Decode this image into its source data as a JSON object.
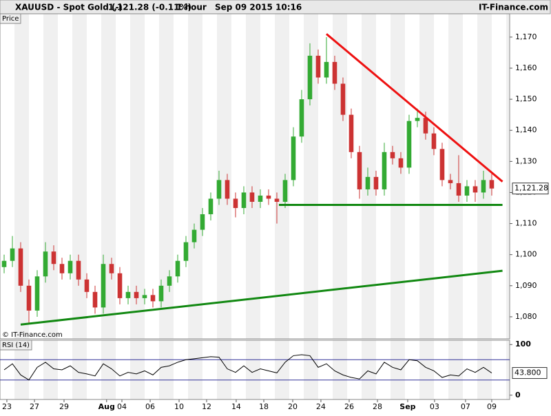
{
  "header": {
    "symbol": "XAUUSD - Spot Gold (-)",
    "quote": "1,121.28 (-0.11%)",
    "interval": "1 hour",
    "datetime": "Sep 09 2015 10:16",
    "source": "IT-Finance.com"
  },
  "chart_data": {
    "type": "candlestick",
    "label": "Price",
    "watermark": "© IT-Finance.com",
    "open": [
      1096,
      1098,
      1102,
      1090,
      1082,
      1093,
      1101,
      1097,
      1094,
      1098,
      1092,
      1088,
      1083,
      1097,
      1094,
      1086,
      1088,
      1086,
      1087,
      1085,
      1090,
      1093,
      1098,
      1104,
      1108,
      1113,
      1118,
      1124,
      1118,
      1115,
      1120,
      1117,
      1119,
      1118,
      1117,
      1124,
      1138,
      1150,
      1164,
      1157,
      1162,
      1155,
      1145,
      1133,
      1121,
      1125,
      1121,
      1133,
      1131,
      1128,
      1143,
      1144,
      1139,
      1134,
      1124,
      1123,
      1119,
      1122,
      1120,
      1124
    ],
    "high": [
      1100,
      1106,
      1104,
      1092,
      1095,
      1104,
      1103,
      1099,
      1100,
      1100,
      1094,
      1090,
      1100,
      1099,
      1096,
      1090,
      1090,
      1089,
      1089,
      1092,
      1095,
      1100,
      1106,
      1110,
      1115,
      1120,
      1127,
      1126,
      1120,
      1122,
      1122,
      1121,
      1121,
      1120,
      1126,
      1141,
      1153,
      1168,
      1166,
      1170,
      1164,
      1157,
      1147,
      1135,
      1128,
      1127,
      1136,
      1135,
      1133,
      1145,
      1147,
      1146,
      1141,
      1136,
      1126,
      1132,
      1124,
      1124,
      1127,
      1126
    ],
    "low": [
      1094,
      1096,
      1088,
      1078,
      1080,
      1091,
      1095,
      1092,
      1092,
      1090,
      1086,
      1081,
      1081,
      1092,
      1084,
      1084,
      1084,
      1084,
      1083,
      1083,
      1088,
      1091,
      1096,
      1102,
      1106,
      1111,
      1116,
      1116,
      1112,
      1113,
      1115,
      1115,
      1116,
      1110,
      1115,
      1122,
      1136,
      1148,
      1155,
      1155,
      1153,
      1143,
      1131,
      1118,
      1119,
      1119,
      1119,
      1129,
      1126,
      1126,
      1141,
      1137,
      1132,
      1122,
      1121,
      1117,
      1117,
      1117,
      1118,
      1119
    ],
    "close": [
      1098,
      1102,
      1090,
      1082,
      1093,
      1101,
      1097,
      1094,
      1098,
      1092,
      1088,
      1083,
      1097,
      1094,
      1086,
      1088,
      1086,
      1087,
      1085,
      1090,
      1093,
      1098,
      1104,
      1108,
      1113,
      1118,
      1124,
      1118,
      1115,
      1120,
      1117,
      1119,
      1118,
      1117,
      1124,
      1138,
      1150,
      1164,
      1157,
      1162,
      1155,
      1145,
      1133,
      1121,
      1125,
      1121,
      1133,
      1131,
      1128,
      1143,
      1144,
      1139,
      1134,
      1124,
      1123,
      1119,
      1122,
      1120,
      1124,
      1121.28
    ],
    "last_price_label": "1,121.28",
    "up_color": "#33aa33",
    "down_color": "#cc3333",
    "xlim": [
      -0.5,
      61.17
    ],
    "xticks": [
      {
        "value": 0.33,
        "label": "23"
      },
      {
        "value": 3.67,
        "label": "27"
      },
      {
        "value": 7.25,
        "label": "29"
      },
      {
        "value": 12.4,
        "label": "Aug"
      },
      {
        "value": 14.25,
        "label": "04"
      },
      {
        "value": 17.67,
        "label": "06"
      },
      {
        "value": 21.17,
        "label": "10"
      },
      {
        "value": 24.5,
        "label": "12"
      },
      {
        "value": 28.08,
        "label": "14"
      },
      {
        "value": 31.42,
        "label": "18"
      },
      {
        "value": 34.92,
        "label": "20"
      },
      {
        "value": 38.33,
        "label": "24"
      },
      {
        "value": 41.75,
        "label": "26"
      },
      {
        "value": 45.17,
        "label": "28"
      },
      {
        "value": 48.83,
        "label": "Sep"
      },
      {
        "value": 52.08,
        "label": "03"
      },
      {
        "value": 55.83,
        "label": "07"
      },
      {
        "value": 59,
        "label": "09"
      }
    ],
    "ylim": [
      1072.9,
      1177.5
    ],
    "yticks": [
      {
        "value": 1080,
        "label": "1,080"
      },
      {
        "value": 1090,
        "label": "1,090"
      },
      {
        "value": 1100,
        "label": "1,100"
      },
      {
        "value": 1110,
        "label": "1,110"
      },
      {
        "value": 1120,
        "label": "1,120"
      },
      {
        "value": 1130,
        "label": "1,130"
      },
      {
        "value": 1140,
        "label": "1,140"
      },
      {
        "value": 1150,
        "label": "1,150"
      },
      {
        "value": 1160,
        "label": "1,160"
      },
      {
        "value": 1170,
        "label": "1,170"
      }
    ],
    "trendlines": [
      {
        "color": "#ee1111",
        "x": [
          39,
          60.3
        ],
        "y": [
          1171,
          1123.5
        ]
      },
      {
        "color": "#118811",
        "x": [
          33.25,
          60.3
        ],
        "y": [
          1116,
          1116
        ]
      },
      {
        "color": "#118811",
        "x": [
          2,
          60.3
        ],
        "y": [
          1077.5,
          1094.8
        ]
      }
    ],
    "rsi": {
      "label": "RSI (14)",
      "color": "#000000",
      "level_color": "#333399",
      "values": [
        50,
        62,
        40,
        30,
        55,
        65,
        52,
        50,
        58,
        45,
        42,
        38,
        62,
        52,
        38,
        45,
        42,
        48,
        40,
        55,
        58,
        65,
        70,
        72,
        74,
        76,
        75,
        52,
        45,
        58,
        45,
        52,
        48,
        44,
        65,
        78,
        80,
        78,
        55,
        62,
        48,
        40,
        35,
        32,
        48,
        42,
        65,
        55,
        50,
        70,
        68,
        55,
        48,
        35,
        40,
        38,
        52,
        45,
        55,
        43.8
      ],
      "last_label": "43.800",
      "ylim": [
        -8.5,
        108.5
      ],
      "yticks": [
        0,
        100
      ],
      "levels": [
        30,
        70
      ]
    }
  }
}
